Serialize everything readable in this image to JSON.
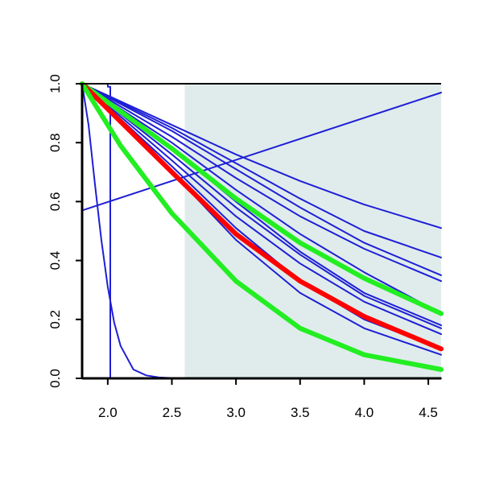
{
  "chart_data": {
    "type": "line",
    "title": "",
    "xlabel": "",
    "ylabel": "",
    "xlim": [
      1.8,
      4.6
    ],
    "ylim": [
      0,
      1
    ],
    "x_ticks": [
      2.0,
      2.5,
      3.0,
      3.5,
      4.0,
      4.5
    ],
    "x_tick_labels": [
      "2.0",
      "2.5",
      "3.0",
      "3.5",
      "4.0",
      "4.5"
    ],
    "y_ticks": [
      0.0,
      0.2,
      0.4,
      0.6,
      0.8,
      1.0
    ],
    "y_tick_labels": [
      "0.0",
      "0.2",
      "0.4",
      "0.6",
      "0.8",
      "1.0"
    ],
    "grid": false,
    "legend": "none",
    "shaded_region": {
      "x_start": 2.6,
      "x_end": 4.6,
      "color": "#e0ecec"
    },
    "colors": {
      "blue": "#1f1fd6",
      "red": "#ff0000",
      "green": "#22ee22",
      "axis": "#000000"
    },
    "series": [
      {
        "color": "blue",
        "width": "thin",
        "x": [
          1.8,
          1.82,
          2.0,
          2.0,
          2.02,
          2.02,
          4.6
        ],
        "y": [
          1.0,
          1.0,
          1.0,
          0.99,
          0.99,
          0.0,
          0.0
        ]
      },
      {
        "color": "blue",
        "width": "thin",
        "x": [
          1.8,
          1.85,
          1.9,
          1.95,
          2.0,
          2.05,
          2.1,
          2.2,
          2.3,
          2.4,
          2.5,
          2.6
        ],
        "y": [
          1.0,
          0.86,
          0.66,
          0.47,
          0.31,
          0.19,
          0.11,
          0.03,
          0.01,
          0.003,
          0.001,
          0.0
        ]
      },
      {
        "color": "blue",
        "width": "thin",
        "x": [
          1.8,
          4.6
        ],
        "y": [
          0.57,
          0.97
        ]
      },
      {
        "color": "blue",
        "width": "thin",
        "x": [
          1.8,
          2.5,
          3.0,
          3.5,
          4.0,
          4.6
        ],
        "y": [
          1.0,
          0.86,
          0.76,
          0.67,
          0.59,
          0.51
        ]
      },
      {
        "color": "blue",
        "width": "thin",
        "x": [
          1.8,
          2.5,
          3.0,
          3.5,
          4.0,
          4.6
        ],
        "y": [
          1.0,
          0.85,
          0.73,
          0.61,
          0.5,
          0.41
        ]
      },
      {
        "color": "blue",
        "width": "thin",
        "x": [
          1.8,
          2.5,
          3.0,
          3.5,
          4.0,
          4.6
        ],
        "y": [
          1.0,
          0.84,
          0.71,
          0.58,
          0.46,
          0.35
        ]
      },
      {
        "color": "blue",
        "width": "thin",
        "x": [
          1.8,
          2.5,
          3.0,
          3.5,
          4.0,
          4.6
        ],
        "y": [
          1.0,
          0.82,
          0.68,
          0.55,
          0.44,
          0.33
        ]
      },
      {
        "color": "blue",
        "width": "thin",
        "x": [
          1.8,
          2.5,
          3.0,
          3.5,
          4.0,
          4.6
        ],
        "y": [
          1.0,
          0.8,
          0.64,
          0.49,
          0.36,
          0.22
        ]
      },
      {
        "color": "blue",
        "width": "thin",
        "x": [
          1.8,
          2.5,
          3.0,
          3.5,
          4.0,
          4.6
        ],
        "y": [
          1.0,
          0.78,
          0.6,
          0.43,
          0.29,
          0.18
        ]
      },
      {
        "color": "blue",
        "width": "thin",
        "x": [
          1.8,
          2.5,
          3.0,
          3.5,
          4.0,
          4.6
        ],
        "y": [
          1.0,
          0.76,
          0.58,
          0.42,
          0.28,
          0.17
        ]
      },
      {
        "color": "blue",
        "width": "thin",
        "x": [
          1.8,
          2.5,
          3.0,
          3.5,
          4.0,
          4.6
        ],
        "y": [
          1.0,
          0.74,
          0.55,
          0.39,
          0.26,
          0.15
        ]
      },
      {
        "color": "blue",
        "width": "thin",
        "x": [
          1.8,
          2.5,
          3.0,
          3.5,
          4.0,
          4.6
        ],
        "y": [
          1.0,
          0.72,
          0.51,
          0.33,
          0.2,
          0.1
        ]
      },
      {
        "color": "blue",
        "width": "thin",
        "x": [
          1.8,
          2.5,
          3.0,
          3.5,
          4.0,
          4.6
        ],
        "y": [
          1.0,
          0.7,
          0.47,
          0.29,
          0.17,
          0.08
        ]
      },
      {
        "color": "green",
        "width": "thick",
        "x": [
          1.8,
          2.5,
          3.0,
          3.5,
          4.0,
          4.6
        ],
        "y": [
          1.0,
          0.78,
          0.61,
          0.46,
          0.34,
          0.22
        ]
      },
      {
        "color": "red",
        "width": "thick",
        "x": [
          1.8,
          2.5,
          3.0,
          3.5,
          4.0,
          4.6
        ],
        "y": [
          1.0,
          0.7,
          0.49,
          0.33,
          0.21,
          0.1
        ]
      },
      {
        "color": "green",
        "width": "thick",
        "x": [
          1.8,
          2.1,
          2.5,
          3.0,
          3.5,
          4.0,
          4.6
        ],
        "y": [
          1.0,
          0.79,
          0.56,
          0.33,
          0.17,
          0.08,
          0.03
        ]
      }
    ]
  }
}
